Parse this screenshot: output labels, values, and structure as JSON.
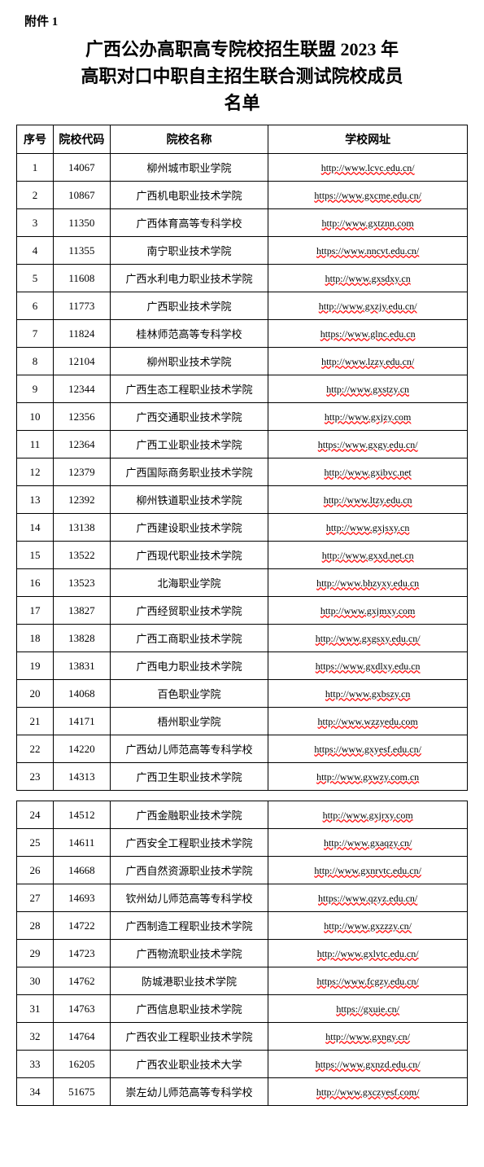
{
  "attachment_label": "附件 1",
  "title_line1": "广西公办高职高专院校招生联盟 2023 年",
  "title_line2": "高职对口中职自主招生联合测试院校成员",
  "title_line3": "名单",
  "headers": {
    "seq": "序号",
    "code": "院校代码",
    "name": "院校名称",
    "url": "学校网址"
  },
  "rows1": [
    {
      "seq": "1",
      "code": "14067",
      "name": "柳州城市职业学院",
      "url": "http://www.lcvc.edu.cn/"
    },
    {
      "seq": "2",
      "code": "10867",
      "name": "广西机电职业技术学院",
      "url": "https://www.gxcme.edu.cn/"
    },
    {
      "seq": "3",
      "code": "11350",
      "name": "广西体育高等专科学校",
      "url": "http://www.gxtznn.com"
    },
    {
      "seq": "4",
      "code": "11355",
      "name": "南宁职业技术学院",
      "url": "https://www.nncvt.edu.cn/"
    },
    {
      "seq": "5",
      "code": "11608",
      "name": "广西水利电力职业技术学院",
      "url": "http://www.gxsdxy.cn"
    },
    {
      "seq": "6",
      "code": "11773",
      "name": "广西职业技术学院",
      "url": "http://www.gxzjy.edu.cn/"
    },
    {
      "seq": "7",
      "code": "11824",
      "name": "桂林师范高等专科学校",
      "url": "https://www.glnc.edu.cn"
    },
    {
      "seq": "8",
      "code": "12104",
      "name": "柳州职业技术学院",
      "url": "http://www.lzzy.edu.cn/"
    },
    {
      "seq": "9",
      "code": "12344",
      "name": "广西生态工程职业技术学院",
      "url": "http://www.gxstzy.cn"
    },
    {
      "seq": "10",
      "code": "12356",
      "name": "广西交通职业技术学院",
      "url": "http://www.gxjzy.com"
    },
    {
      "seq": "11",
      "code": "12364",
      "name": "广西工业职业技术学院",
      "url": "https://www.gxgy.edu.cn/"
    },
    {
      "seq": "12",
      "code": "12379",
      "name": "广西国际商务职业技术学院",
      "url": "http://www.gxibvc.net"
    },
    {
      "seq": "13",
      "code": "12392",
      "name": "柳州铁道职业技术学院",
      "url": "http://www.ltzy.edu.cn"
    },
    {
      "seq": "14",
      "code": "13138",
      "name": "广西建设职业技术学院",
      "url": "http://www.gxjsxy.cn"
    },
    {
      "seq": "15",
      "code": "13522",
      "name": "广西现代职业技术学院",
      "url": "http://www.gxxd.net.cn"
    },
    {
      "seq": "16",
      "code": "13523",
      "name": "北海职业学院",
      "url": "http://www.bhzyxy.edu.cn"
    },
    {
      "seq": "17",
      "code": "13827",
      "name": "广西经贸职业技术学院",
      "url": "http://www.gxjmxy.com"
    },
    {
      "seq": "18",
      "code": "13828",
      "name": "广西工商职业技术学院",
      "url": "http://www.gxgsxy.edu.cn/"
    },
    {
      "seq": "19",
      "code": "13831",
      "name": "广西电力职业技术学院",
      "url": "https://www.gxdlxy.edu.cn"
    },
    {
      "seq": "20",
      "code": "14068",
      "name": "百色职业学院",
      "url": "http://www.gxbszy.cn"
    },
    {
      "seq": "21",
      "code": "14171",
      "name": "梧州职业学院",
      "url": "http://www.wzzyedu.com"
    },
    {
      "seq": "22",
      "code": "14220",
      "name": "广西幼儿师范高等专科学校",
      "url": "https://www.gxyesf.edu.cn/"
    },
    {
      "seq": "23",
      "code": "14313",
      "name": "广西卫生职业技术学院",
      "url": "http://www.gxwzy.com.cn"
    }
  ],
  "rows2": [
    {
      "seq": "24",
      "code": "14512",
      "name": "广西金融职业技术学院",
      "url": "http://www.gxjrxy.com"
    },
    {
      "seq": "25",
      "code": "14611",
      "name": "广西安全工程职业技术学院",
      "url": "http://www.gxaqzy.cn/"
    },
    {
      "seq": "26",
      "code": "14668",
      "name": "广西自然资源职业技术学院",
      "url": "http://www.gxnrvtc.edu.cn/"
    },
    {
      "seq": "27",
      "code": "14693",
      "name": "钦州幼儿师范高等专科学校",
      "url": "https://www.qzyz.edu.cn/"
    },
    {
      "seq": "28",
      "code": "14722",
      "name": "广西制造工程职业技术学院",
      "url": "http://www.gxzzzy.cn/"
    },
    {
      "seq": "29",
      "code": "14723",
      "name": "广西物流职业技术学院",
      "url": "http://www.gxlvtc.edu.cn/"
    },
    {
      "seq": "30",
      "code": "14762",
      "name": "防城港职业技术学院",
      "url": "https://www.fcgzy.edu.cn/"
    },
    {
      "seq": "31",
      "code": "14763",
      "name": "广西信息职业技术学院",
      "url": "https://gxuie.cn/"
    },
    {
      "seq": "32",
      "code": "14764",
      "name": "广西农业工程职业技术学院",
      "url": "http://www.gxngy.cn/"
    },
    {
      "seq": "33",
      "code": "16205",
      "name": "广西农业职业技术大学",
      "url": "https://www.gxnzd.edu.cn/"
    },
    {
      "seq": "34",
      "code": "51675",
      "name": "崇左幼儿师范高等专科学校",
      "url": "http://www.gxczyesf.com/"
    }
  ],
  "styling": {
    "background_color": "#ffffff",
    "border_color": "#000000",
    "text_color": "#000000",
    "url_underline_color": "#ff0000",
    "title_fontsize": 22,
    "header_fontsize": 14,
    "cell_fontsize": 13,
    "url_fontsize": 12
  }
}
